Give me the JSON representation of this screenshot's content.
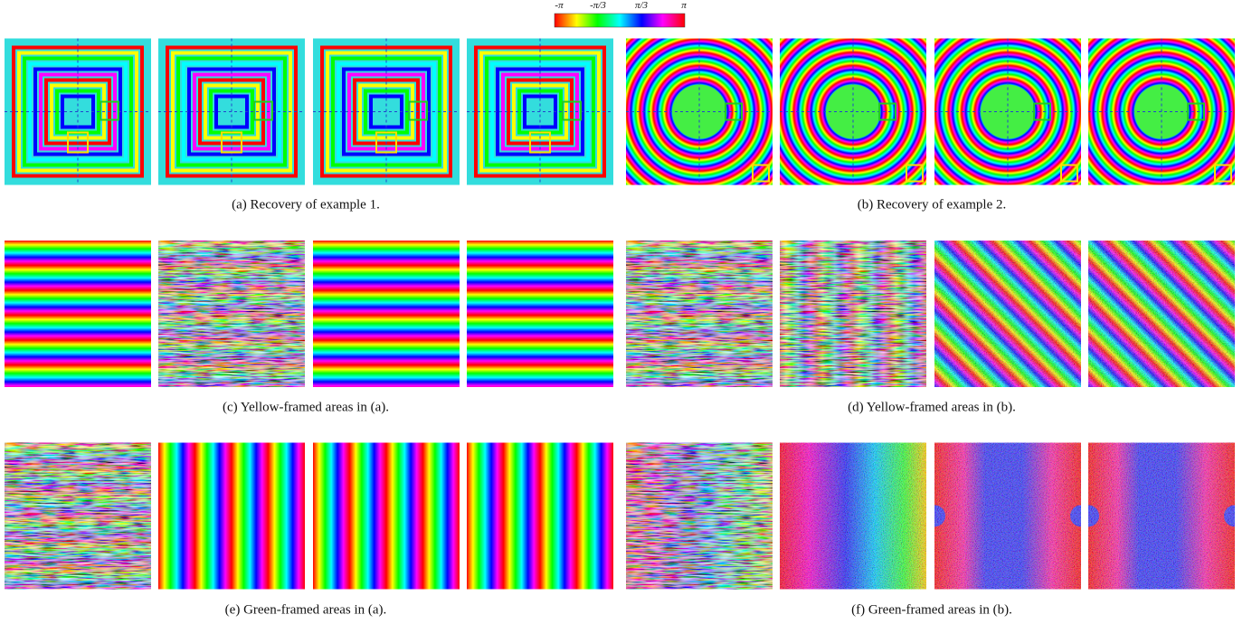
{
  "colorbar": {
    "labels": [
      "-π",
      "-π/3",
      "π/3",
      "π"
    ]
  },
  "captions": [
    "(a) Recovery of example 1.",
    "(b) Recovery of example 2.",
    "(c) Yellow-framed areas in (a).",
    "(d) Yellow-framed areas in (b).",
    "(e) Green-framed areas in (a).",
    "(f) Green-framed areas in (b)."
  ]
}
